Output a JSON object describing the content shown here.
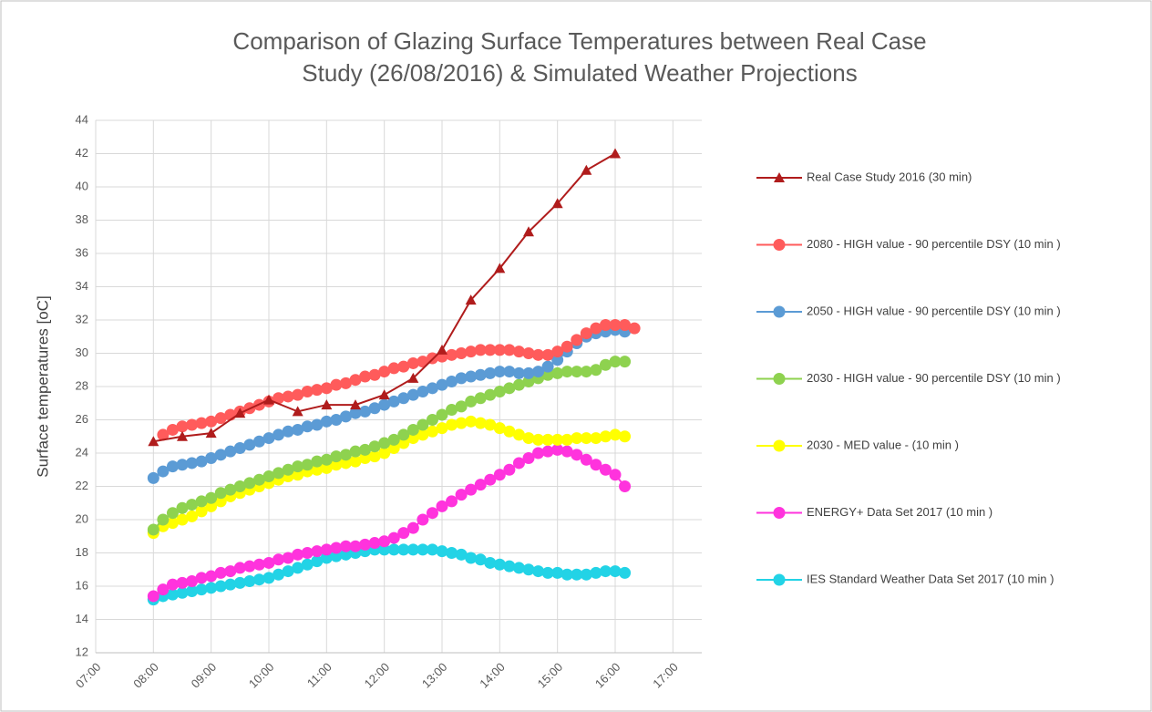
{
  "chart_data": {
    "type": "line",
    "title": [
      "Comparison of Glazing Surface Temperatures between Real Case",
      "Study (26/08/2016) & Simulated Weather Projections"
    ],
    "y_label": "Surface temperatures [oC]",
    "xlim": [
      420,
      1050
    ],
    "xticks": [
      {
        "value": 420,
        "label": "07:00"
      },
      {
        "value": 480,
        "label": "08:00"
      },
      {
        "value": 540,
        "label": "09:00"
      },
      {
        "value": 600,
        "label": "10:00"
      },
      {
        "value": 660,
        "label": "11:00"
      },
      {
        "value": 720,
        "label": "12:00"
      },
      {
        "value": 780,
        "label": "13:00"
      },
      {
        "value": 840,
        "label": "14:00"
      },
      {
        "value": 900,
        "label": "15:00"
      },
      {
        "value": 960,
        "label": "16:00"
      },
      {
        "value": 1020,
        "label": "17:00"
      }
    ],
    "ylim": [
      12,
      44
    ],
    "yticks": [
      12,
      14,
      16,
      18,
      20,
      22,
      24,
      26,
      28,
      30,
      32,
      34,
      36,
      38,
      40,
      42,
      44
    ],
    "grid": true,
    "legend": "right",
    "series": [
      {
        "name": "Real Case Study 2016 (30 min)",
        "color": "#b01c1c",
        "marker": "triangle",
        "x": [
          480,
          510,
          540,
          570,
          600,
          630,
          660,
          690,
          720,
          750,
          780,
          810,
          840,
          870,
          900,
          930,
          960
        ],
        "values": [
          24.7,
          25.0,
          25.2,
          26.4,
          27.2,
          26.5,
          26.9,
          26.9,
          27.5,
          28.5,
          30.2,
          33.2,
          35.1,
          37.3,
          39.0,
          41.0,
          42.0
        ]
      },
      {
        "name": "2080 - HIGH value - 90 percentile DSY (10 min )",
        "color": "#ff5b5b",
        "marker": "circle",
        "x": [
          490,
          500,
          510,
          520,
          530,
          540,
          550,
          560,
          570,
          580,
          590,
          600,
          610,
          620,
          630,
          640,
          650,
          660,
          670,
          680,
          690,
          700,
          710,
          720,
          730,
          740,
          750,
          760,
          770,
          780,
          790,
          800,
          810,
          820,
          830,
          840,
          850,
          860,
          870,
          880,
          890,
          900,
          910,
          920,
          930,
          940,
          950,
          960,
          970,
          980
        ],
        "values": [
          25.1,
          25.4,
          25.6,
          25.7,
          25.8,
          25.9,
          26.1,
          26.3,
          26.5,
          26.7,
          26.9,
          27.1,
          27.3,
          27.4,
          27.5,
          27.7,
          27.8,
          27.9,
          28.1,
          28.2,
          28.4,
          28.6,
          28.7,
          28.9,
          29.1,
          29.2,
          29.4,
          29.5,
          29.7,
          29.8,
          29.9,
          30.0,
          30.1,
          30.2,
          30.2,
          30.2,
          30.2,
          30.1,
          30.0,
          29.9,
          29.9,
          30.1,
          30.4,
          30.8,
          31.2,
          31.5,
          31.7,
          31.7,
          31.7,
          31.5
        ]
      },
      {
        "name": "2050 - HIGH value - 90 percentile DSY (10 min )",
        "color": "#5b9bd5",
        "marker": "circle",
        "x": [
          480,
          490,
          500,
          510,
          520,
          530,
          540,
          550,
          560,
          570,
          580,
          590,
          600,
          610,
          620,
          630,
          640,
          650,
          660,
          670,
          680,
          690,
          700,
          710,
          720,
          730,
          740,
          750,
          760,
          770,
          780,
          790,
          800,
          810,
          820,
          830,
          840,
          850,
          860,
          870,
          880,
          890,
          900,
          910,
          920,
          930,
          940,
          950,
          960,
          970
        ],
        "values": [
          22.5,
          22.9,
          23.2,
          23.3,
          23.4,
          23.5,
          23.7,
          23.9,
          24.1,
          24.3,
          24.5,
          24.7,
          24.9,
          25.1,
          25.3,
          25.4,
          25.6,
          25.7,
          25.9,
          26.0,
          26.2,
          26.4,
          26.5,
          26.7,
          26.9,
          27.1,
          27.3,
          27.5,
          27.7,
          27.9,
          28.1,
          28.3,
          28.5,
          28.6,
          28.7,
          28.8,
          28.9,
          28.9,
          28.8,
          28.8,
          28.9,
          29.2,
          29.6,
          30.1,
          30.6,
          31.0,
          31.2,
          31.3,
          31.4,
          31.3
        ]
      },
      {
        "name": "2030 - HIGH value - 90 percentile DSY (10 min )",
        "color": "#8ed24f",
        "marker": "circle",
        "x": [
          480,
          490,
          500,
          510,
          520,
          530,
          540,
          550,
          560,
          570,
          580,
          590,
          600,
          610,
          620,
          630,
          640,
          650,
          660,
          670,
          680,
          690,
          700,
          710,
          720,
          730,
          740,
          750,
          760,
          770,
          780,
          790,
          800,
          810,
          820,
          830,
          840,
          850,
          860,
          870,
          880,
          890,
          900,
          910,
          920,
          930,
          940,
          950,
          960,
          970
        ],
        "values": [
          19.4,
          20.0,
          20.4,
          20.7,
          20.9,
          21.1,
          21.3,
          21.6,
          21.8,
          22.0,
          22.2,
          22.4,
          22.6,
          22.8,
          23.0,
          23.2,
          23.3,
          23.5,
          23.6,
          23.8,
          23.9,
          24.1,
          24.2,
          24.4,
          24.6,
          24.8,
          25.1,
          25.4,
          25.7,
          26.0,
          26.3,
          26.6,
          26.8,
          27.1,
          27.3,
          27.5,
          27.7,
          27.9,
          28.1,
          28.3,
          28.5,
          28.7,
          28.8,
          28.9,
          28.9,
          28.9,
          29.0,
          29.3,
          29.5,
          29.5
        ]
      },
      {
        "name": " 2030 - MED value - (10 min )",
        "color": "#ffff00",
        "marker": "circle",
        "x": [
          480,
          490,
          500,
          510,
          520,
          530,
          540,
          550,
          560,
          570,
          580,
          590,
          600,
          610,
          620,
          630,
          640,
          650,
          660,
          670,
          680,
          690,
          700,
          710,
          720,
          730,
          740,
          750,
          760,
          770,
          780,
          790,
          800,
          810,
          820,
          830,
          840,
          850,
          860,
          870,
          880,
          890,
          900,
          910,
          920,
          930,
          940,
          950,
          960,
          970
        ],
        "values": [
          19.2,
          19.6,
          19.8,
          20.0,
          20.2,
          20.5,
          20.8,
          21.1,
          21.4,
          21.6,
          21.8,
          22.0,
          22.2,
          22.4,
          22.6,
          22.7,
          22.9,
          23.0,
          23.1,
          23.3,
          23.4,
          23.5,
          23.7,
          23.8,
          24.0,
          24.3,
          24.6,
          24.9,
          25.1,
          25.3,
          25.5,
          25.7,
          25.8,
          25.9,
          25.8,
          25.7,
          25.5,
          25.3,
          25.1,
          24.9,
          24.8,
          24.8,
          24.8,
          24.8,
          24.9,
          24.9,
          24.9,
          25.0,
          25.1,
          25.0
        ]
      },
      {
        "name": "ENERGY+ Data Set 2017 (10 min )",
        "color": "#ff33dd",
        "marker": "circle",
        "x": [
          480,
          490,
          500,
          510,
          520,
          530,
          540,
          550,
          560,
          570,
          580,
          590,
          600,
          610,
          620,
          630,
          640,
          650,
          660,
          670,
          680,
          690,
          700,
          710,
          720,
          730,
          740,
          750,
          760,
          770,
          780,
          790,
          800,
          810,
          820,
          830,
          840,
          850,
          860,
          870,
          880,
          890,
          900,
          910,
          920,
          930,
          940,
          950,
          960,
          970
        ],
        "values": [
          15.4,
          15.8,
          16.1,
          16.2,
          16.3,
          16.5,
          16.6,
          16.8,
          16.9,
          17.1,
          17.2,
          17.3,
          17.4,
          17.6,
          17.7,
          17.9,
          18.0,
          18.1,
          18.2,
          18.3,
          18.4,
          18.4,
          18.5,
          18.6,
          18.7,
          18.9,
          19.2,
          19.5,
          20.0,
          20.4,
          20.8,
          21.1,
          21.5,
          21.8,
          22.1,
          22.4,
          22.7,
          23.0,
          23.4,
          23.7,
          24.0,
          24.1,
          24.2,
          24.1,
          23.9,
          23.6,
          23.3,
          23.0,
          22.7,
          22.0
        ]
      },
      {
        "name": "IES Standard Weather Data Set 2017 (10 min )",
        "color": "#22d3e6",
        "marker": "circle",
        "x": [
          480,
          490,
          500,
          510,
          520,
          530,
          540,
          550,
          560,
          570,
          580,
          590,
          600,
          610,
          620,
          630,
          640,
          650,
          660,
          670,
          680,
          690,
          700,
          710,
          720,
          730,
          740,
          750,
          760,
          770,
          780,
          790,
          800,
          810,
          820,
          830,
          840,
          850,
          860,
          870,
          880,
          890,
          900,
          910,
          920,
          930,
          940,
          950,
          960,
          970
        ],
        "values": [
          15.2,
          15.4,
          15.5,
          15.6,
          15.7,
          15.8,
          15.9,
          16.0,
          16.1,
          16.2,
          16.3,
          16.4,
          16.5,
          16.7,
          16.9,
          17.1,
          17.3,
          17.5,
          17.7,
          17.8,
          17.9,
          18.0,
          18.1,
          18.2,
          18.2,
          18.2,
          18.2,
          18.2,
          18.2,
          18.2,
          18.1,
          18.0,
          17.9,
          17.7,
          17.6,
          17.4,
          17.3,
          17.2,
          17.1,
          17.0,
          16.9,
          16.8,
          16.8,
          16.7,
          16.7,
          16.7,
          16.8,
          16.9,
          16.9,
          16.8
        ]
      }
    ]
  }
}
